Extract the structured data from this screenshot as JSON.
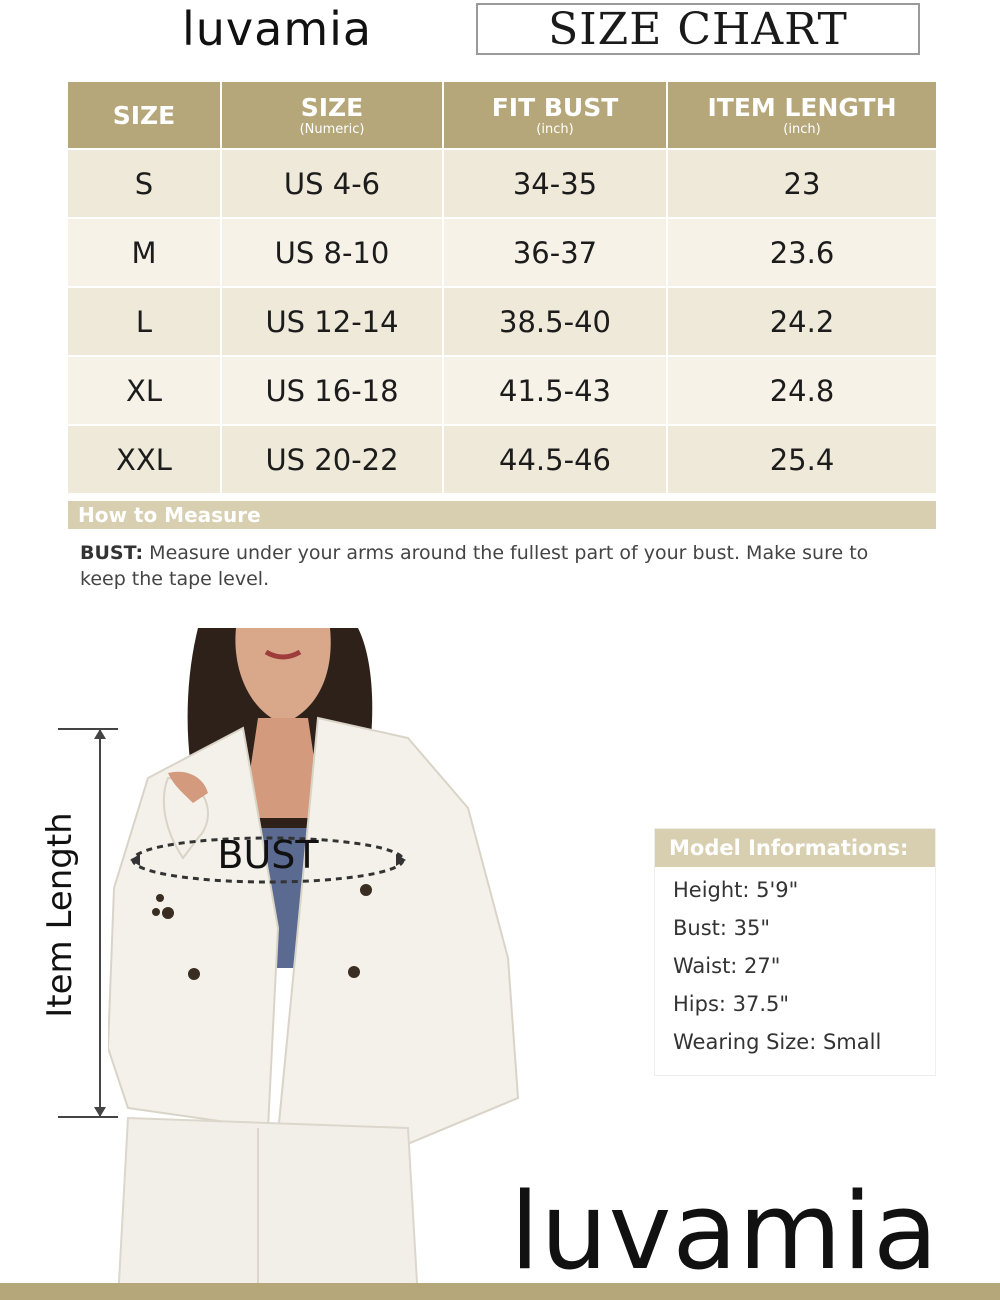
{
  "brand": "luvamia",
  "chart_title": "SIZE CHART",
  "table": {
    "headers": [
      {
        "label": "SIZE",
        "sub": ""
      },
      {
        "label": "SIZE",
        "sub": "(Numeric)"
      },
      {
        "label": "FIT BUST",
        "sub": "(inch)"
      },
      {
        "label": "ITEM LENGTH",
        "sub": "(inch)"
      }
    ],
    "rows": [
      [
        "S",
        "US 4-6",
        "34-35",
        "23"
      ],
      [
        "M",
        "US 8-10",
        "36-37",
        "23.6"
      ],
      [
        "L",
        "US 12-14",
        "38.5-40",
        "24.2"
      ],
      [
        "XL",
        "US 16-18",
        "41.5-43",
        "24.8"
      ],
      [
        "XXL",
        "US 20-22",
        "44.5-46",
        "25.4"
      ]
    ]
  },
  "how_to_measure": {
    "title": "How to Measure",
    "bust_label": "BUST:",
    "bust_text": "Measure under your arms around the fullest part of your bust. Make sure to keep the tape level."
  },
  "illustration": {
    "bust_label": "BUST",
    "item_length_label": "Item Length"
  },
  "model_info": {
    "title": "Model Informations:",
    "items": [
      "Height: 5'9\"",
      "Bust: 35\"",
      "Waist: 27\"",
      "Hips: 37.5\"",
      "Wearing Size: Small"
    ]
  },
  "colors": {
    "header_gold": "#b5a77a",
    "light_gold": "#d8ceb0",
    "row_tint": "#efe9d9"
  }
}
